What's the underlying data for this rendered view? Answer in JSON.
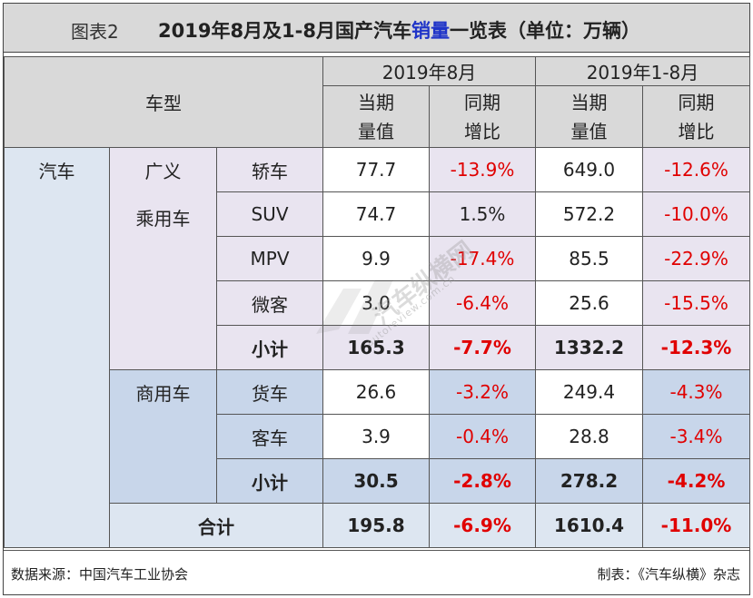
{
  "title": {
    "label": "图表2",
    "main_prefix": "2019年8月及1-8月国产汽车",
    "main_highlight": "销量",
    "main_suffix": "一览表（单位：万辆）",
    "highlight_color": "#1f34c8"
  },
  "header": {
    "vehicle_type": "车型",
    "period_aug": "2019年8月",
    "period_ytd": "2019年1-8月",
    "current_line1": "当期",
    "current_line2": "量值",
    "yoy_line1": "同期",
    "yoy_line2": "增比"
  },
  "categories": {
    "auto": "汽车",
    "passenger_line1": "广义",
    "passenger_line2": "乘用车",
    "commercial": "商用车",
    "subtotal": "小计",
    "total": "合计"
  },
  "rows": {
    "sedan": {
      "name": "轿车",
      "aug_value": "77.7",
      "aug_yoy": "-13.9%",
      "ytd_value": "649.0",
      "ytd_yoy": "-12.6%"
    },
    "suv": {
      "name": "SUV",
      "aug_value": "74.7",
      "aug_yoy": "1.5%",
      "ytd_value": "572.2",
      "ytd_yoy": "-10.0%"
    },
    "mpv": {
      "name": "MPV",
      "aug_value": "9.9",
      "aug_yoy": "-17.4%",
      "ytd_value": "85.5",
      "ytd_yoy": "-22.9%"
    },
    "minibus": {
      "name": "微客",
      "aug_value": "3.0",
      "aug_yoy": "-6.4%",
      "ytd_value": "25.6",
      "ytd_yoy": "-15.5%"
    },
    "passenger_subtotal": {
      "aug_value": "165.3",
      "aug_yoy": "-7.7%",
      "ytd_value": "1332.2",
      "ytd_yoy": "-12.3%"
    },
    "truck": {
      "name": "货车",
      "aug_value": "26.6",
      "aug_yoy": "-3.2%",
      "ytd_value": "249.4",
      "ytd_yoy": "-4.3%"
    },
    "bus": {
      "name": "客车",
      "aug_value": "3.9",
      "aug_yoy": "-0.4%",
      "ytd_value": "28.8",
      "ytd_yoy": "-3.4%"
    },
    "commercial_subtotal": {
      "aug_value": "30.5",
      "aug_yoy": "-2.8%",
      "ytd_value": "278.2",
      "ytd_yoy": "-4.2%"
    },
    "total": {
      "aug_value": "195.8",
      "aug_yoy": "-6.9%",
      "ytd_value": "1610.4",
      "ytd_yoy": "-11.0%"
    }
  },
  "footer": {
    "source": "数据来源：中国汽车工业协会",
    "credit": "制表：《汽车纵横》杂志"
  },
  "watermark": {
    "text": "汽车纵横网",
    "url": "autoreview.com.cn"
  },
  "colors": {
    "negative": "#e00000",
    "header_bg": "#d9d9d9",
    "passenger_bg": "#e9e4f0",
    "commercial_bg": "#c8d6ea",
    "auto_bg": "#dde6f1"
  }
}
